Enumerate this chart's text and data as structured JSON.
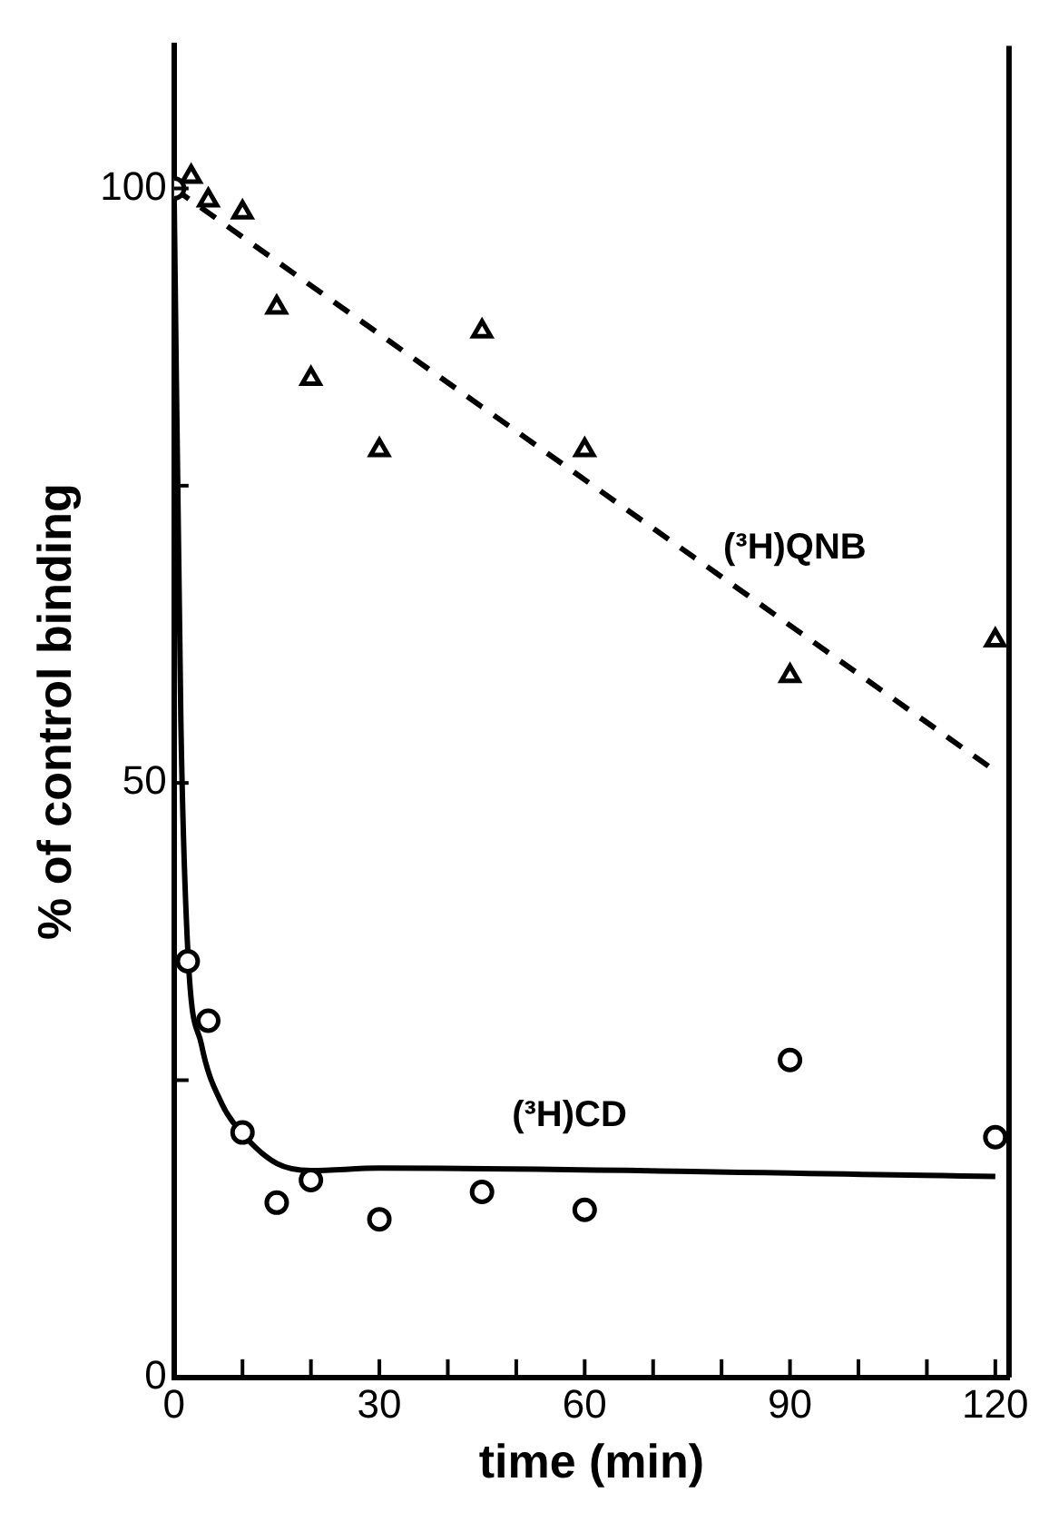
{
  "chart_data": {
    "type": "scatter",
    "xlabel": "time (min)",
    "ylabel": "% of control binding",
    "xlim": [
      0,
      122
    ],
    "ylim": [
      0,
      112
    ],
    "grid": false,
    "legend": false,
    "xticks": [
      0,
      {
        "value": 10,
        "label": null
      },
      {
        "value": 20,
        "label": null
      },
      30,
      {
        "value": 40,
        "label": null
      },
      {
        "value": 50,
        "label": null
      },
      60,
      {
        "value": 70,
        "label": null
      },
      {
        "value": 80,
        "label": null
      },
      90,
      {
        "value": 100,
        "label": null
      },
      {
        "value": 110,
        "label": null
      },
      120
    ],
    "yticks": [
      0,
      {
        "value": 25,
        "label": null
      },
      50,
      {
        "value": 75,
        "label": null
      },
      100
    ],
    "series": [
      {
        "marker": "triangle",
        "color": "#000000",
        "x": [
          2.5,
          5,
          10,
          15,
          20,
          30,
          45,
          60,
          90,
          120
        ],
        "values": [
          101,
          99,
          98,
          90,
          84,
          78,
          88,
          78,
          59,
          62
        ]
      },
      {
        "type": "line",
        "name": "(³H)QNB",
        "marker": "none",
        "line_style": "dashed",
        "color": "#000000",
        "x": [
          0,
          120
        ],
        "values": [
          100,
          51
        ]
      },
      {
        "marker": "circle",
        "color": "#000000",
        "x": [
          0,
          2,
          5,
          10,
          15,
          20,
          30,
          45,
          60,
          90,
          120
        ],
        "values": [
          100,
          35,
          30,
          20.6,
          14.7,
          16.6,
          13.3,
          15.6,
          14.1,
          26.7,
          20.2
        ]
      },
      {
        "type": "line",
        "name": "(³H)CD",
        "marker": "none",
        "line_style": "solid",
        "color": "#000000",
        "x": [
          0,
          1,
          2,
          4,
          7,
          10,
          15,
          20,
          30,
          120
        ],
        "values": [
          100,
          55,
          36,
          28,
          23,
          20.5,
          18,
          17.4,
          17.6,
          16.9
        ]
      }
    ]
  }
}
